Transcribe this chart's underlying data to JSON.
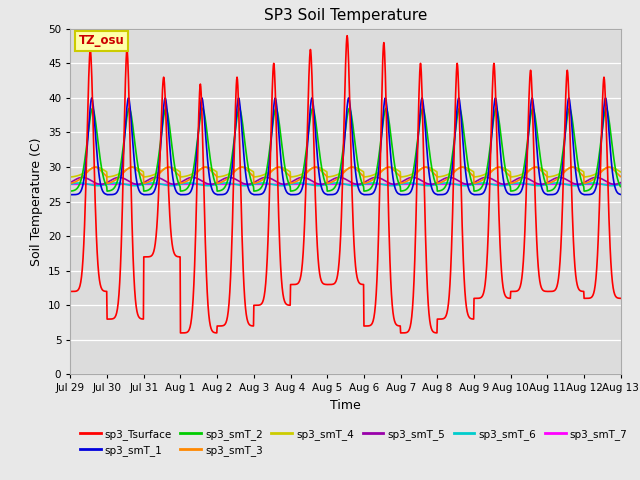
{
  "title": "SP3 Soil Temperature",
  "ylabel": "Soil Temperature (C)",
  "xlabel": "Time",
  "tz_label": "TZ_osu",
  "ylim": [
    0,
    50
  ],
  "yticks": [
    0,
    5,
    10,
    15,
    20,
    25,
    30,
    35,
    40,
    45,
    50
  ],
  "n_days": 15,
  "series": {
    "sp3_Tsurface": {
      "color": "#FF0000",
      "lw": 1.2
    },
    "sp3_smT_1": {
      "color": "#0000DD",
      "lw": 1.2
    },
    "sp3_smT_2": {
      "color": "#00CC00",
      "lw": 1.2
    },
    "sp3_smT_3": {
      "color": "#FF8800",
      "lw": 1.2
    },
    "sp3_smT_4": {
      "color": "#CCCC00",
      "lw": 1.2
    },
    "sp3_smT_5": {
      "color": "#9900AA",
      "lw": 1.2
    },
    "sp3_smT_6": {
      "color": "#00CCCC",
      "lw": 1.2
    },
    "sp3_smT_7": {
      "color": "#FF00FF",
      "lw": 1.2
    }
  },
  "background_color": "#E8E8E8",
  "plot_bg_color": "#DCDCDC",
  "grid_color": "#FFFFFF",
  "x_tick_labels": [
    "Jul 29",
    "Jul 30",
    "Jul 31",
    "Aug 1",
    "Aug 2",
    "Aug 3",
    "Aug 4",
    "Aug 5",
    "Aug 6",
    "Aug 7",
    "Aug 8",
    "Aug 9",
    "Aug 10",
    "Aug 11",
    "Aug 12",
    "Aug 13"
  ]
}
